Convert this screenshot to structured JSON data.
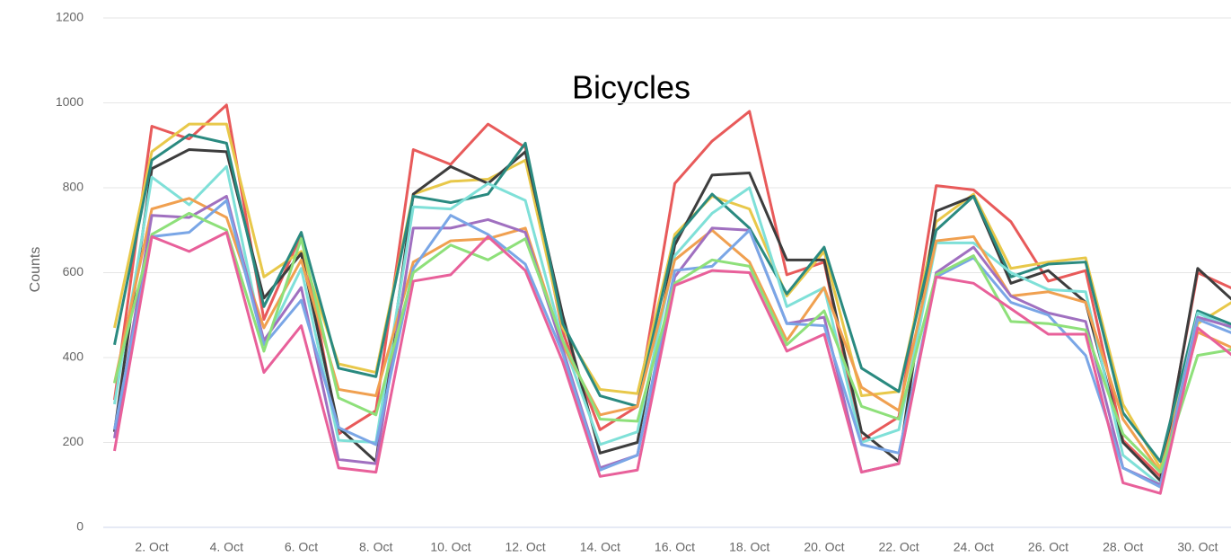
{
  "chart_data": {
    "type": "line",
    "title": "Bicycles",
    "ylabel": "Counts",
    "categories": [
      null,
      "2. Oct",
      null,
      "4. Oct",
      null,
      "6. Oct",
      null,
      "8. Oct",
      null,
      "10. Oct",
      null,
      "12. Oct",
      null,
      "14. Oct",
      null,
      "16. Oct",
      null,
      "18. Oct",
      null,
      "20. Oct",
      null,
      "22. Oct",
      null,
      "24. Oct",
      null,
      "26. Oct",
      null,
      "28. Oct",
      null,
      "30. Oct",
      null
    ],
    "ylim": [
      0,
      1200
    ],
    "yticks": [
      0,
      200,
      400,
      600,
      800,
      1000,
      1200
    ],
    "grid": true,
    "series": [
      {
        "color": "#e85a5a",
        "values": [
          300,
          945,
          915,
          995,
          490,
          690,
          220,
          275,
          890,
          855,
          950,
          895,
          460,
          230,
          285,
          810,
          910,
          980,
          595,
          625,
          205,
          260,
          805,
          795,
          720,
          580,
          605,
          205,
          120,
          600,
          560
        ]
      },
      {
        "color": "#e8c84a",
        "values": [
          470,
          885,
          950,
          950,
          590,
          650,
          385,
          365,
          785,
          815,
          820,
          865,
          470,
          325,
          315,
          690,
          780,
          750,
          545,
          650,
          310,
          320,
          720,
          785,
          610,
          625,
          635,
          290,
          140,
          480,
          535
        ]
      },
      {
        "color": "#3d3d3d",
        "values": [
          225,
          845,
          890,
          885,
          540,
          645,
          235,
          155,
          785,
          850,
          810,
          885,
          500,
          175,
          200,
          665,
          830,
          835,
          630,
          630,
          225,
          155,
          745,
          780,
          575,
          605,
          530,
          200,
          110,
          610,
          530
        ]
      },
      {
        "color": "#2a8a80",
        "values": [
          430,
          865,
          925,
          905,
          520,
          695,
          375,
          355,
          780,
          765,
          785,
          905,
          480,
          310,
          285,
          680,
          785,
          705,
          550,
          660,
          375,
          320,
          700,
          780,
          590,
          620,
          625,
          270,
          155,
          510,
          475
        ]
      },
      {
        "color": "#7fe0d8",
        "values": [
          290,
          825,
          760,
          850,
          430,
          610,
          205,
          200,
          755,
          750,
          810,
          770,
          440,
          195,
          225,
          640,
          740,
          800,
          520,
          565,
          200,
          230,
          670,
          670,
          600,
          560,
          555,
          170,
          100,
          505,
          465
        ]
      },
      {
        "color": "#f0a050",
        "values": [
          340,
          750,
          775,
          730,
          470,
          630,
          325,
          310,
          625,
          675,
          680,
          705,
          430,
          265,
          285,
          630,
          700,
          625,
          440,
          565,
          330,
          275,
          675,
          685,
          545,
          555,
          530,
          255,
          130,
          460,
          420
        ]
      },
      {
        "color": "#a070c0",
        "values": [
          210,
          735,
          730,
          780,
          440,
          565,
          160,
          150,
          705,
          705,
          725,
          695,
          420,
          140,
          170,
          590,
          705,
          700,
          480,
          495,
          130,
          150,
          600,
          660,
          545,
          505,
          485,
          140,
          100,
          495,
          470
        ]
      },
      {
        "color": "#7aa6e6",
        "values": [
          230,
          685,
          695,
          770,
          430,
          535,
          235,
          195,
          610,
          735,
          690,
          620,
          410,
          135,
          170,
          605,
          615,
          700,
          480,
          475,
          195,
          175,
          590,
          635,
          530,
          500,
          405,
          140,
          95,
          490,
          455
        ]
      },
      {
        "color": "#8ee07a",
        "values": [
          340,
          690,
          740,
          700,
          415,
          680,
          305,
          265,
          600,
          665,
          630,
          680,
          440,
          255,
          250,
          575,
          630,
          615,
          430,
          510,
          285,
          255,
          595,
          640,
          485,
          480,
          465,
          220,
          130,
          405,
          420
        ]
      },
      {
        "color": "#e8609a",
        "values": [
          180,
          685,
          650,
          695,
          365,
          475,
          140,
          130,
          580,
          595,
          685,
          605,
          390,
          120,
          135,
          570,
          605,
          600,
          415,
          455,
          130,
          150,
          590,
          575,
          515,
          455,
          455,
          105,
          80,
          470,
          400
        ]
      }
    ]
  }
}
